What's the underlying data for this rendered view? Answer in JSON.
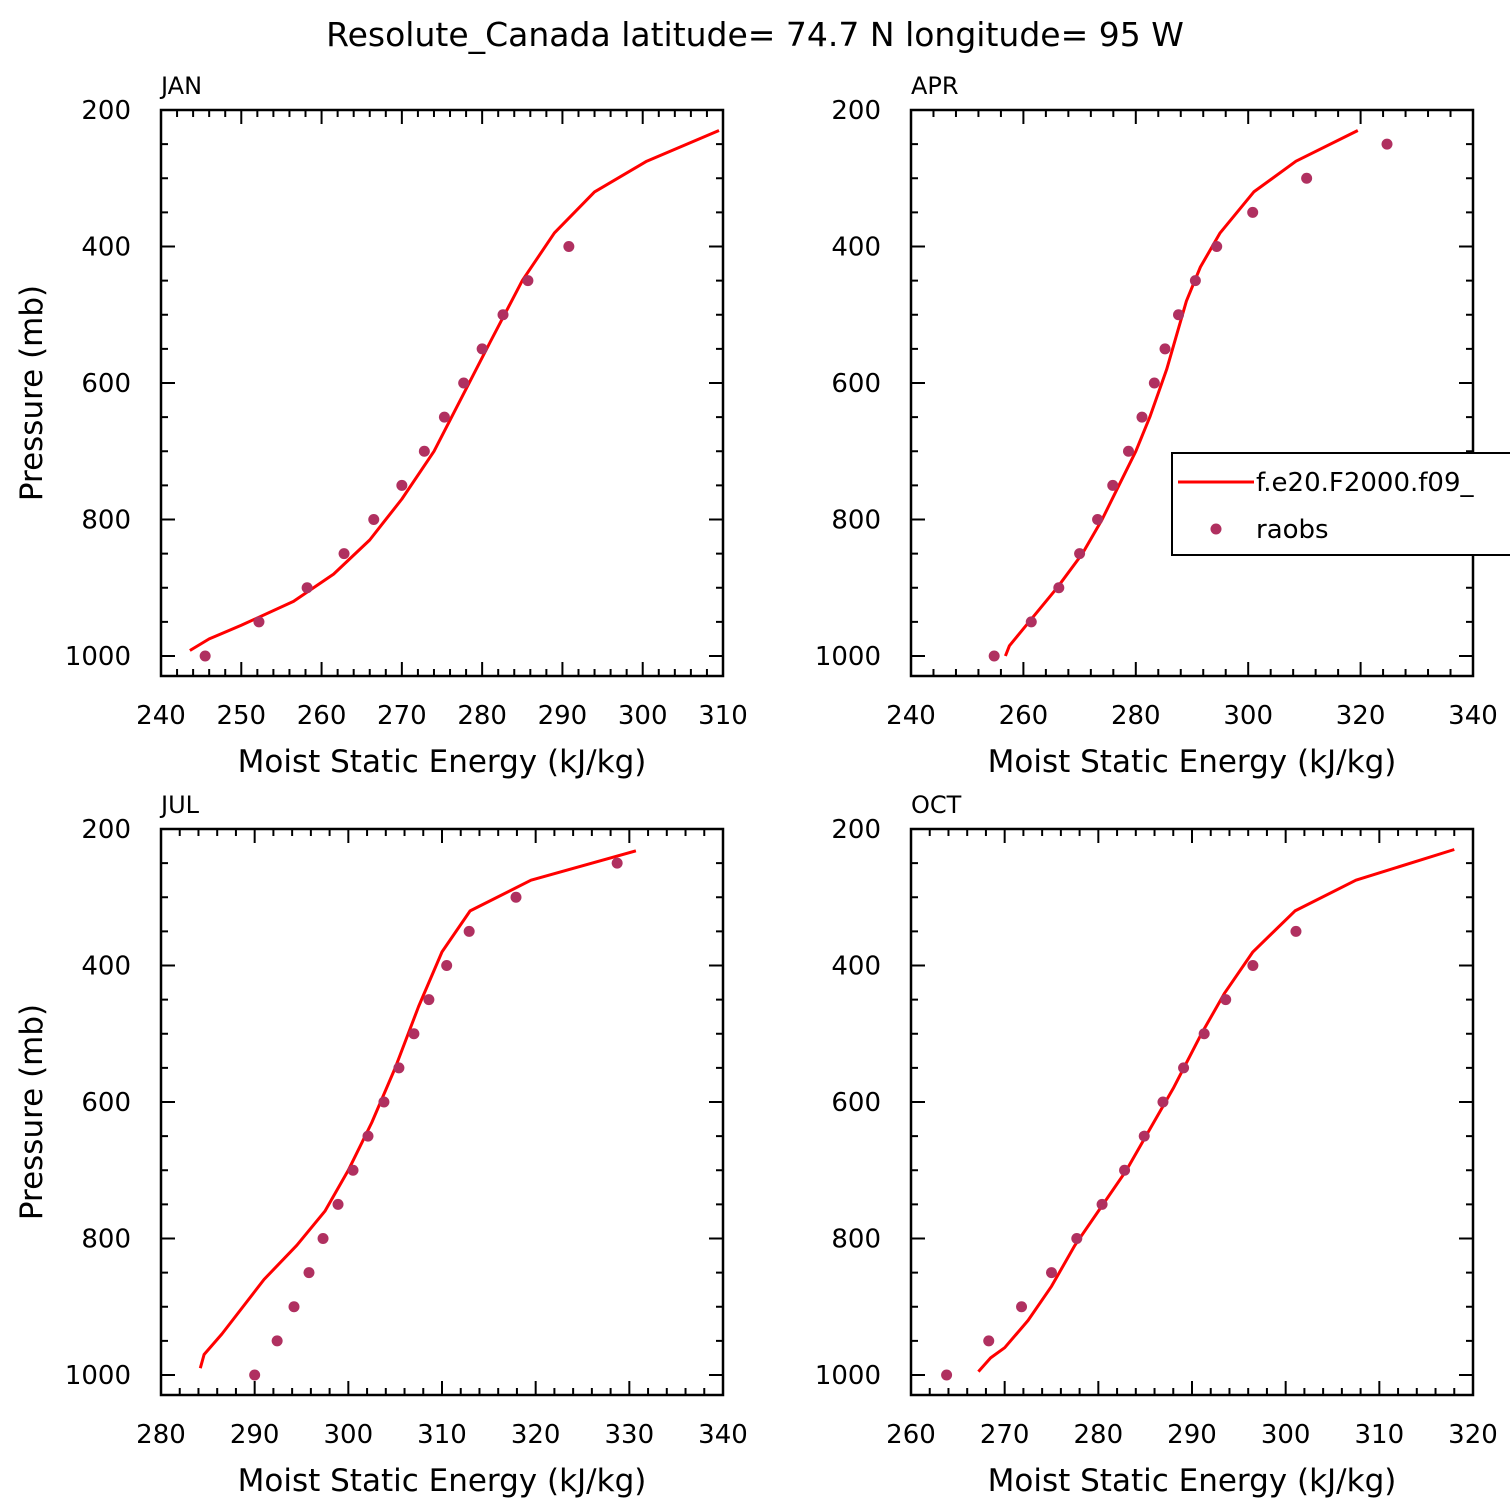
{
  "title": "Resolute_Canada  latitude= 74.7 N longitude= 95 W",
  "colors": {
    "model": "#ff0000",
    "obs": "#b03060",
    "axis": "#000000"
  },
  "legend": {
    "panel": "APR",
    "entries": [
      {
        "label": "f.e20.F2000.f09_",
        "marker": "line",
        "series": "model"
      },
      {
        "label": "raobs",
        "marker": "dot",
        "series": "obs"
      }
    ]
  },
  "chart_data": [
    {
      "type": "line",
      "panel_label": "JAN",
      "xlabel": "Moist Static Energy (kJ/kg)",
      "ylabel": "Pressure (mb)",
      "xlim": [
        240,
        310
      ],
      "ylim": [
        1000,
        200
      ],
      "xticks": [
        240,
        250,
        260,
        270,
        280,
        290,
        300,
        310
      ],
      "yticks": [
        200,
        400,
        600,
        800,
        1000
      ],
      "series": [
        {
          "name": "f.e20.F2000.f09_",
          "style": "line",
          "x": [
            243.6,
            246.0,
            250.0,
            256.5,
            261.5,
            266.0,
            270.0,
            274.0,
            277.5,
            281.0,
            285.0,
            289.0,
            294.0,
            300.5,
            309.5
          ],
          "y": [
            992,
            975,
            955,
            920,
            880,
            830,
            770,
            700,
            620,
            540,
            450,
            380,
            320,
            275,
            230
          ]
        },
        {
          "name": "raobs",
          "style": "points",
          "x": [
            245.5,
            252.2,
            258.2,
            262.8,
            266.5,
            270.0,
            272.8,
            275.3,
            277.7,
            280.0,
            282.6,
            285.7,
            290.8
          ],
          "y": [
            1000,
            950,
            900,
            850,
            800,
            750,
            700,
            650,
            600,
            550,
            500,
            450,
            400
          ]
        }
      ]
    },
    {
      "type": "line",
      "panel_label": "APR",
      "xlabel": "Moist Static Energy (kJ/kg)",
      "ylabel": "",
      "xlim": [
        240,
        340
      ],
      "ylim": [
        1000,
        200
      ],
      "xticks": [
        240,
        260,
        280,
        300,
        320,
        340
      ],
      "yticks": [
        200,
        400,
        600,
        800,
        1000
      ],
      "series": [
        {
          "name": "f.e20.F2000.f09_",
          "style": "line",
          "x": [
            256.8,
            257.5,
            261.0,
            266.0,
            270.5,
            274.0,
            277.0,
            280.0,
            282.5,
            285.5,
            289.0,
            291.5,
            295.0,
            301.0,
            308.5,
            319.5
          ],
          "y": [
            1000,
            985,
            950,
            900,
            850,
            800,
            750,
            700,
            650,
            580,
            480,
            430,
            380,
            320,
            275,
            230
          ]
        },
        {
          "name": "raobs",
          "style": "points",
          "x": [
            254.8,
            261.4,
            266.3,
            270.0,
            273.2,
            275.9,
            278.7,
            281.1,
            283.3,
            285.2,
            287.6,
            290.6,
            294.4,
            300.8,
            310.4,
            324.7
          ],
          "y": [
            1000,
            950,
            900,
            850,
            800,
            750,
            700,
            650,
            600,
            550,
            500,
            450,
            400,
            350,
            300,
            250
          ]
        }
      ]
    },
    {
      "type": "line",
      "panel_label": "JUL",
      "xlabel": "Moist Static Energy (kJ/kg)",
      "ylabel": "Pressure (mb)",
      "xlim": [
        280,
        340
      ],
      "ylim": [
        1000,
        200
      ],
      "xticks": [
        280,
        290,
        300,
        310,
        320,
        330,
        340
      ],
      "yticks": [
        200,
        400,
        600,
        800,
        1000
      ],
      "series": [
        {
          "name": "f.e20.F2000.f09_",
          "style": "line",
          "x": [
            284.2,
            284.6,
            286.5,
            291.0,
            294.5,
            297.5,
            300.0,
            302.5,
            305.0,
            307.5,
            310.0,
            313.0,
            319.5,
            330.7
          ],
          "y": [
            990,
            970,
            940,
            860,
            810,
            760,
            700,
            630,
            550,
            460,
            380,
            320,
            275,
            232
          ]
        },
        {
          "name": "raobs",
          "style": "points",
          "x": [
            290.0,
            292.4,
            294.2,
            295.8,
            297.3,
            298.9,
            300.5,
            302.1,
            303.8,
            305.4,
            307.0,
            308.6,
            310.5,
            312.9,
            317.9,
            328.7
          ],
          "y": [
            1000,
            950,
            900,
            850,
            800,
            750,
            700,
            650,
            600,
            550,
            500,
            450,
            400,
            350,
            300,
            250
          ]
        }
      ]
    },
    {
      "type": "line",
      "panel_label": "OCT",
      "xlabel": "Moist Static Energy (kJ/kg)",
      "ylabel": "",
      "xlim": [
        260,
        320
      ],
      "ylim": [
        1000,
        200
      ],
      "xticks": [
        260,
        270,
        280,
        290,
        300,
        310,
        320
      ],
      "yticks": [
        200,
        400,
        600,
        800,
        1000
      ],
      "series": [
        {
          "name": "f.e20.F2000.f09_",
          "style": "line",
          "x": [
            267.2,
            268.5,
            270.0,
            272.5,
            275.0,
            277.5,
            280.5,
            283.0,
            285.5,
            288.0,
            291.0,
            293.5,
            296.5,
            301.0,
            307.5,
            318.0
          ],
          "y": [
            995,
            975,
            960,
            920,
            870,
            810,
            750,
            700,
            640,
            580,
            500,
            440,
            380,
            320,
            275,
            230
          ]
        },
        {
          "name": "raobs",
          "style": "points",
          "x": [
            263.8,
            268.3,
            271.8,
            275.0,
            277.7,
            280.4,
            282.8,
            284.9,
            286.9,
            289.1,
            291.3,
            293.6,
            296.5,
            301.1
          ],
          "y": [
            1000,
            950,
            900,
            850,
            800,
            750,
            700,
            650,
            600,
            550,
            500,
            450,
            400,
            350
          ]
        }
      ]
    }
  ]
}
